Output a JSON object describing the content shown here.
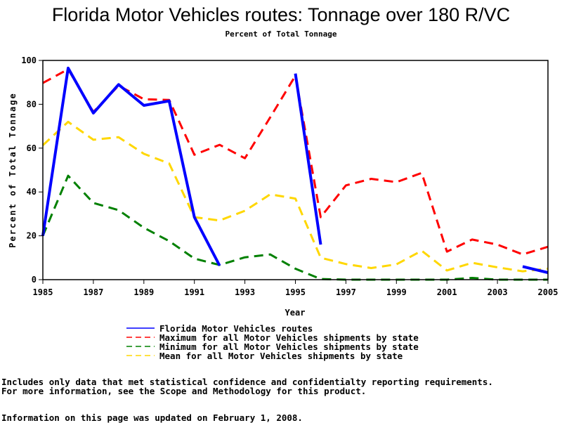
{
  "chart_data": {
    "type": "line",
    "title": "Florida Motor Vehicles routes: Tonnage over 180 R/VC",
    "subtitle": "Percent of Total Tonnage",
    "xlabel": "Year",
    "ylabel": "Percent of Total Tonnage",
    "xlim": [
      1985,
      2005
    ],
    "ylim": [
      0,
      100
    ],
    "grid": false,
    "legend_position": "bottom",
    "x_ticks": [
      "1985",
      "1987",
      "1989",
      "1991",
      "1993",
      "1995",
      "1997",
      "1999",
      "2001",
      "2003",
      "2005"
    ],
    "y_ticks": [
      "0",
      "20",
      "40",
      "60",
      "80",
      "100"
    ],
    "x": [
      1985,
      1986,
      1987,
      1988,
      1989,
      1990,
      1991,
      1992,
      1993,
      1994,
      1995,
      1996,
      1997,
      1998,
      1999,
      2000,
      2001,
      2002,
      2003,
      2004,
      2005
    ],
    "series": [
      {
        "name": "Florida Motor Vehicles routes",
        "color": "#0000ff",
        "style": "solid",
        "values": [
          20,
          96.5,
          76,
          89,
          79.5,
          81.5,
          28.5,
          6.4,
          null,
          null,
          94,
          16,
          null,
          null,
          null,
          null,
          null,
          null,
          null,
          6,
          3.2
        ]
      },
      {
        "name": "Maximum for all Motor Vehicles shipments by state",
        "color": "#ff0000",
        "style": "dashed",
        "values": [
          89.7,
          96,
          76.5,
          88.5,
          82.3,
          82,
          57,
          61.5,
          55.4,
          74,
          93,
          28.5,
          43,
          46,
          44.5,
          48.7,
          12.8,
          18.3,
          16,
          11.5,
          15
        ]
      },
      {
        "name": "Minimum for all Motor Vehicles shipments by state",
        "color": "#008000",
        "style": "dashed",
        "values": [
          20,
          47.4,
          35,
          31.7,
          23.7,
          17.6,
          9.6,
          6.7,
          10.2,
          11.5,
          5,
          0.3,
          0,
          0,
          0,
          0,
          0,
          0.8,
          0,
          0,
          0
        ]
      },
      {
        "name": "Mean for all Motor Vehicles shipments by state",
        "color": "#ffd700",
        "style": "dashed",
        "values": [
          61.3,
          72,
          63.8,
          65,
          57.4,
          53,
          28.5,
          27,
          31.4,
          38.9,
          37,
          10,
          7.1,
          5.3,
          7,
          13.2,
          4.2,
          7.7,
          5.6,
          3.8,
          5
        ]
      }
    ]
  },
  "footer": {
    "line1": "Includes only data that met statistical confidence and confidentialty reporting requirements.",
    "line2": "For more information, see the Scope and Methodology for this product.",
    "line3": "Information on this page was updated on February 1, 2008."
  }
}
